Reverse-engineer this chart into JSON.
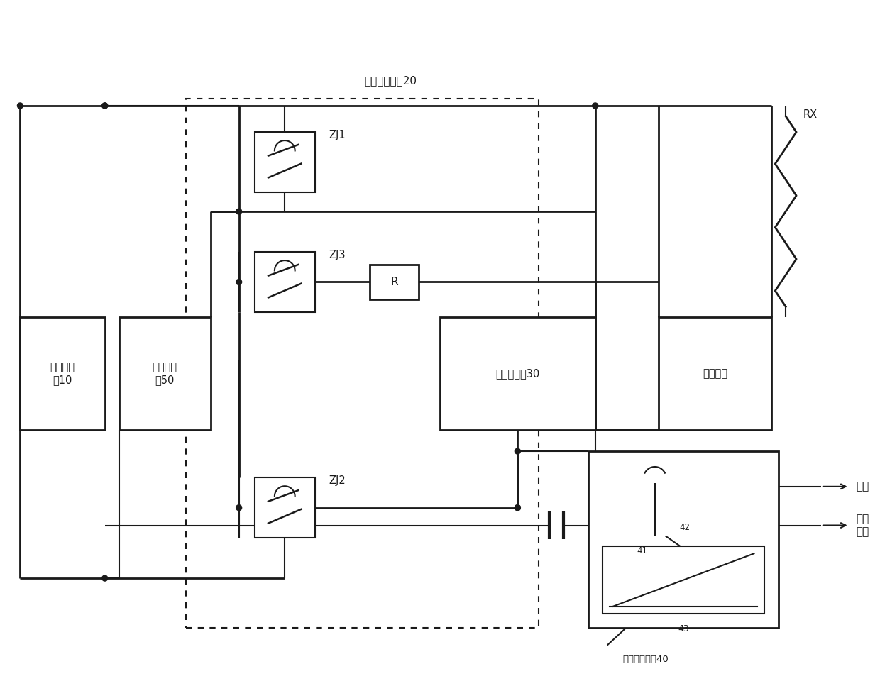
{
  "bg": "#ffffff",
  "lc": "#1a1a1a",
  "title": "高压控制开关20",
  "bat_label": "动力电池\n包10",
  "vcu_label": "整车控制\n器50",
  "bms_label": "电池管理器30",
  "hvl_label": "高压负载",
  "delay_label": "延时断电模块40",
  "zj1": "ZJ1",
  "zj2": "ZJ2",
  "zj3": "ZJ3",
  "R_label": "R",
  "RX_label": "RX",
  "c41": "41",
  "c42": "42",
  "c43": "43",
  "ce_label": "常电",
  "key_label": "钥匙\n信号",
  "lw": 1.5,
  "lw_thick": 2.0
}
